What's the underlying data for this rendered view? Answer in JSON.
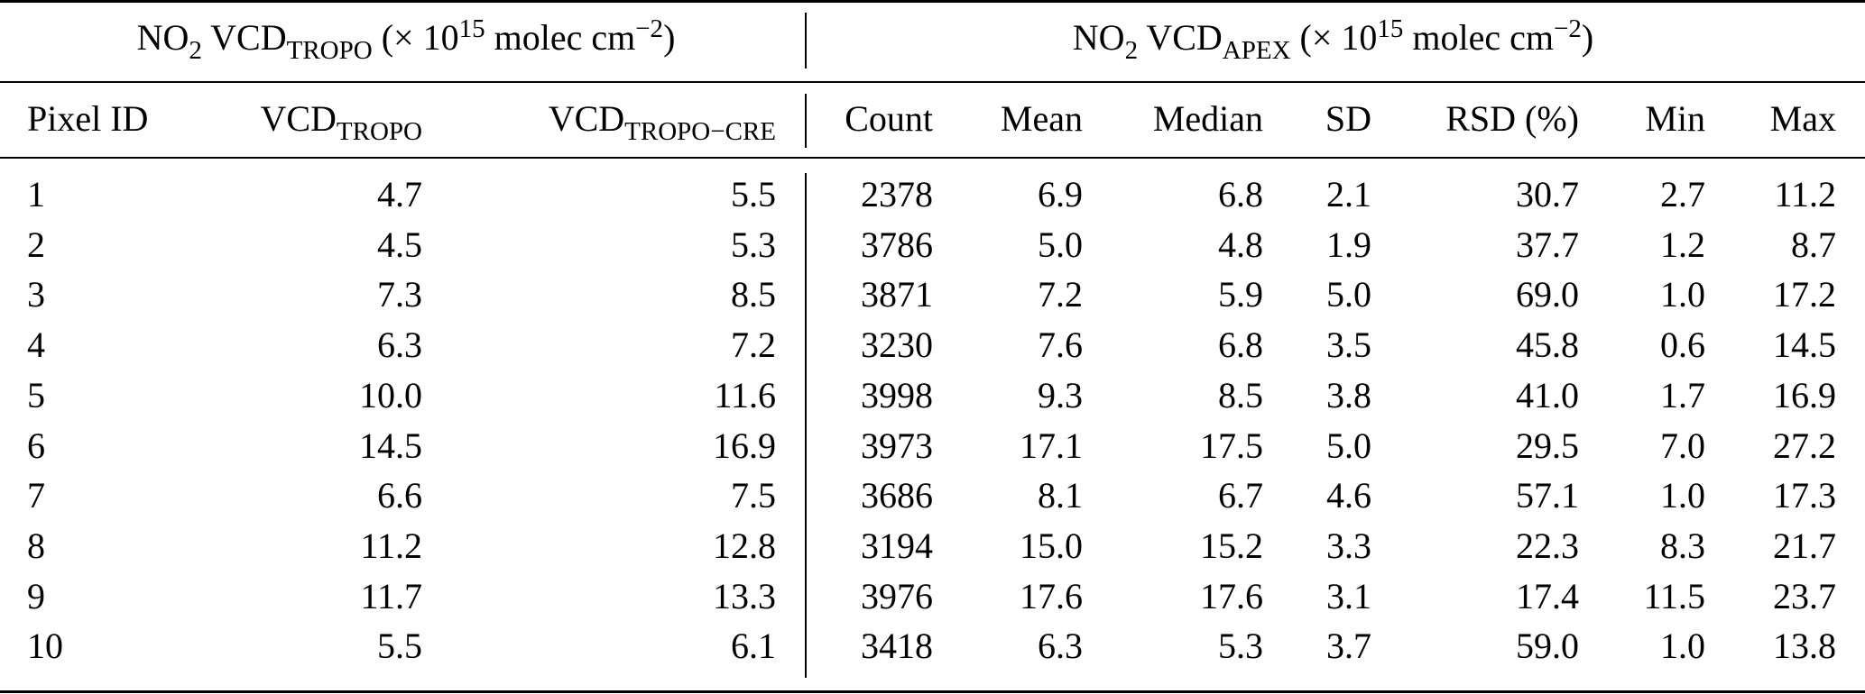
{
  "table": {
    "group_headers": {
      "tropo": {
        "pre": "NO",
        "pre_sub": "2",
        "vcd": " VCD",
        "vcd_sub": "TROPO",
        "unit_open": " (× 10",
        "unit_sup": "15",
        "unit_mid": " molec cm",
        "unit_sup2": "−2",
        "unit_close": ")"
      },
      "apex": {
        "pre": "NO",
        "pre_sub": "2",
        "vcd": " VCD",
        "vcd_sub": "APEX",
        "unit_open": " (× 10",
        "unit_sup": "15",
        "unit_mid": " molec cm",
        "unit_sup2": "−2",
        "unit_close": ")"
      }
    },
    "column_headers": {
      "pixel_id": "Pixel ID",
      "vcd_tropo": {
        "main": "VCD",
        "sub": "TROPO"
      },
      "vcd_tropo_cre": {
        "main": "VCD",
        "sub": "TROPO−CRE"
      },
      "count": "Count",
      "mean": "Mean",
      "median": "Median",
      "sd": "SD",
      "rsd": "RSD (%)",
      "min": "Min",
      "max": "Max"
    },
    "rows": [
      [
        "1",
        "4.7",
        "5.5",
        "2378",
        "6.9",
        "6.8",
        "2.1",
        "30.7",
        "2.7",
        "11.2"
      ],
      [
        "2",
        "4.5",
        "5.3",
        "3786",
        "5.0",
        "4.8",
        "1.9",
        "37.7",
        "1.2",
        "8.7"
      ],
      [
        "3",
        "7.3",
        "8.5",
        "3871",
        "7.2",
        "5.9",
        "5.0",
        "69.0",
        "1.0",
        "17.2"
      ],
      [
        "4",
        "6.3",
        "7.2",
        "3230",
        "7.6",
        "6.8",
        "3.5",
        "45.8",
        "0.6",
        "14.5"
      ],
      [
        "5",
        "10.0",
        "11.6",
        "3998",
        "9.3",
        "8.5",
        "3.8",
        "41.0",
        "1.7",
        "16.9"
      ],
      [
        "6",
        "14.5",
        "16.9",
        "3973",
        "17.1",
        "17.5",
        "5.0",
        "29.5",
        "7.0",
        "27.2"
      ],
      [
        "7",
        "6.6",
        "7.5",
        "3686",
        "8.1",
        "6.7",
        "4.6",
        "57.1",
        "1.0",
        "17.3"
      ],
      [
        "8",
        "11.2",
        "12.8",
        "3194",
        "15.0",
        "15.2",
        "3.3",
        "22.3",
        "8.3",
        "21.7"
      ],
      [
        "9",
        "11.7",
        "13.3",
        "3976",
        "17.6",
        "17.6",
        "3.1",
        "17.4",
        "11.5",
        "23.7"
      ],
      [
        "10",
        "5.5",
        "6.1",
        "3418",
        "6.3",
        "5.3",
        "3.7",
        "59.0",
        "1.0",
        "13.8"
      ]
    ]
  }
}
